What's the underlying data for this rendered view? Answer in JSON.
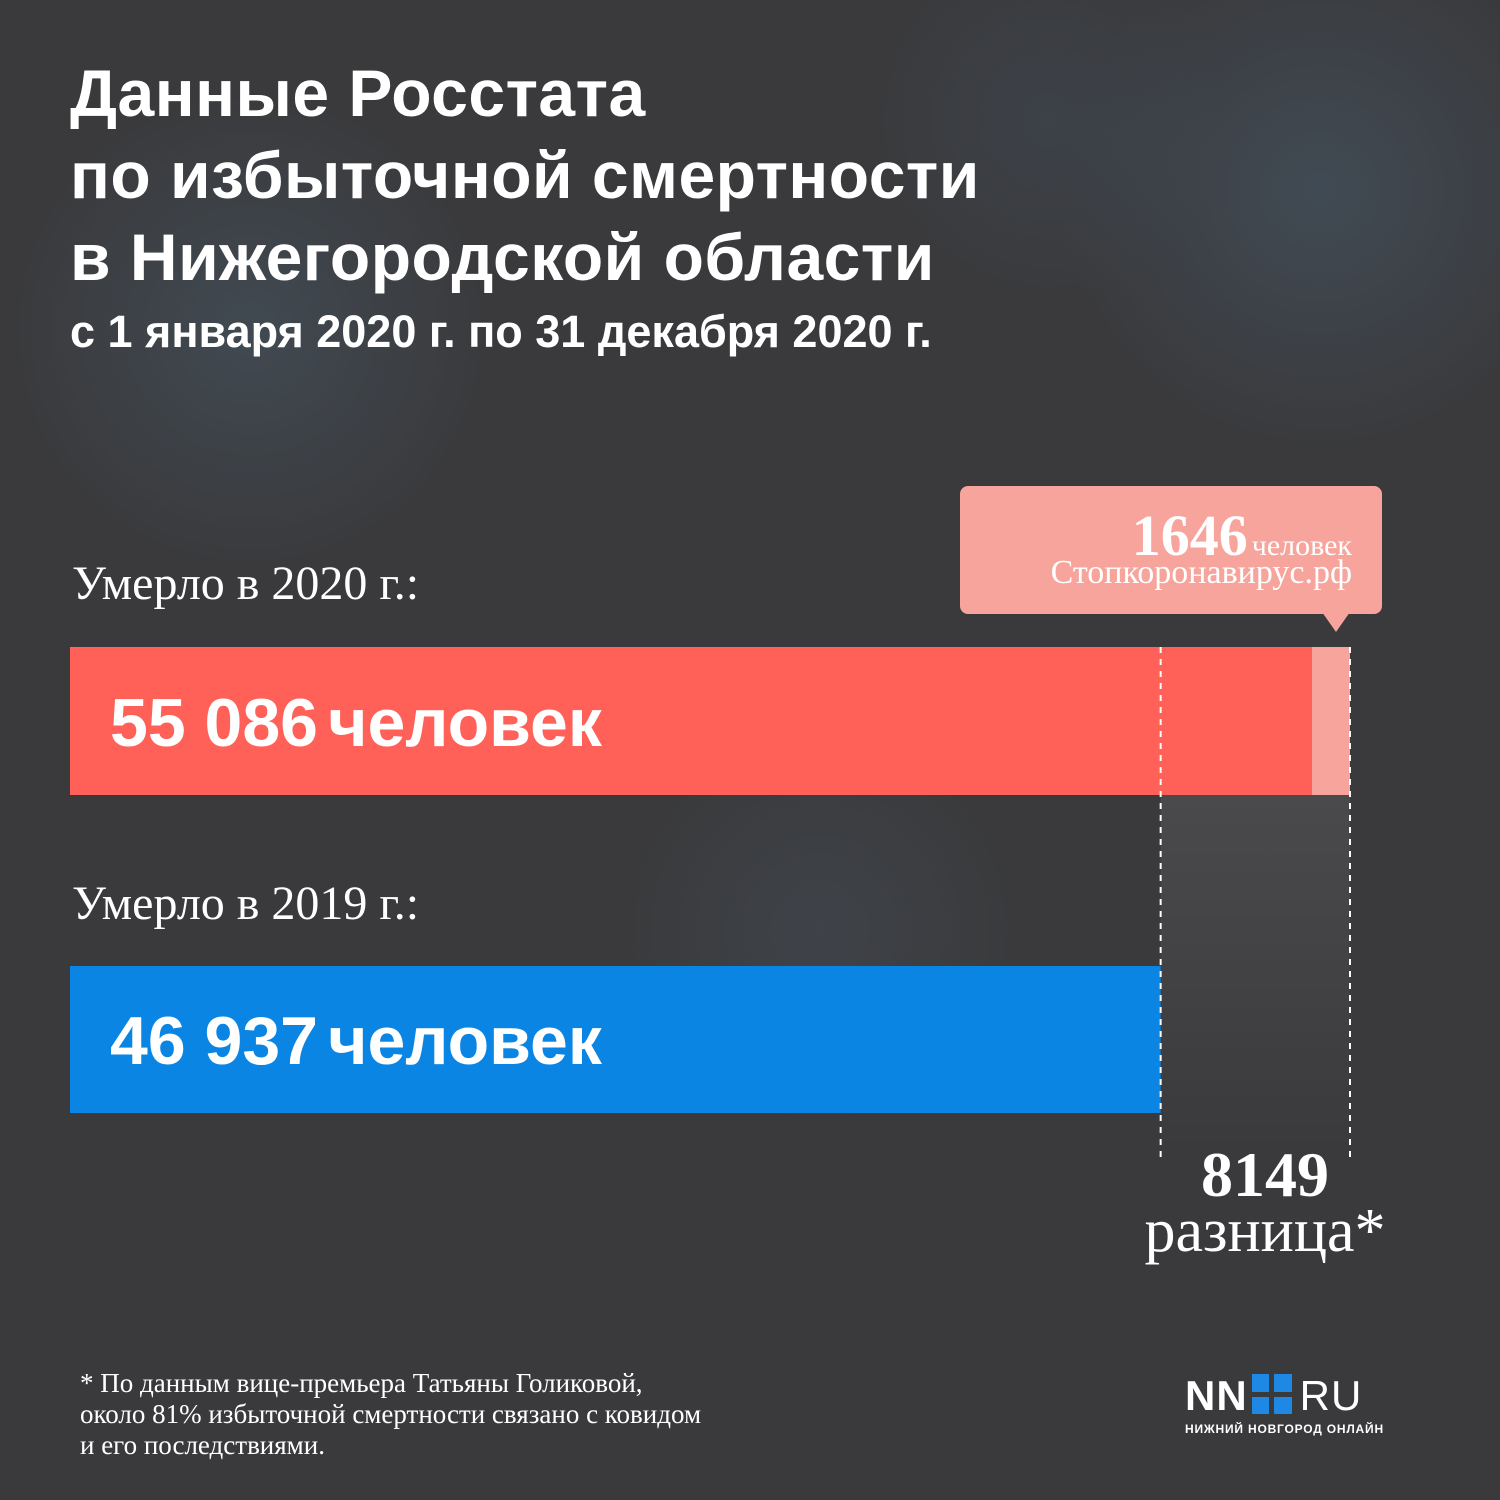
{
  "title": {
    "line1": "Данные Росстата",
    "line2": "по избыточной смертности",
    "line3": "в Нижегородской области"
  },
  "subtitle": "с 1 января 2020 г. по 31 декабря 2020 г.",
  "chart_data": {
    "type": "bar",
    "orientation": "horizontal",
    "categories": [
      "Умерло в 2020 г.:",
      "Умерло в 2019 г.:"
    ],
    "values": [
      55086,
      46937
    ],
    "value_labels": [
      "55 086",
      "46 937"
    ],
    "unit": "человек",
    "covid_segment": {
      "value": 1646,
      "label": "1646",
      "unit": "человек",
      "source": "Стопкоронавирус.рф"
    },
    "difference": {
      "value": 8149,
      "label": "8149",
      "caption": "разница*"
    },
    "colors": {
      "bar_2020": "#ff6057",
      "bar_2019": "#0a85e3",
      "covid": "#f7a49d",
      "diff_area": "#4a4a4c",
      "guide": "#ffffff"
    },
    "xlim": [
      0,
      55086
    ]
  },
  "footnote": {
    "line1": "* По данным вице-премьера Татьяны Голиковой,",
    "line2": "около 81% избыточной смертности связано с ковидом",
    "line3": "и его последствиями."
  },
  "logo": {
    "left": "NN",
    "right": "RU",
    "tagline": "НИЖНИЙ НОВГОРОД ОНЛАЙН"
  }
}
